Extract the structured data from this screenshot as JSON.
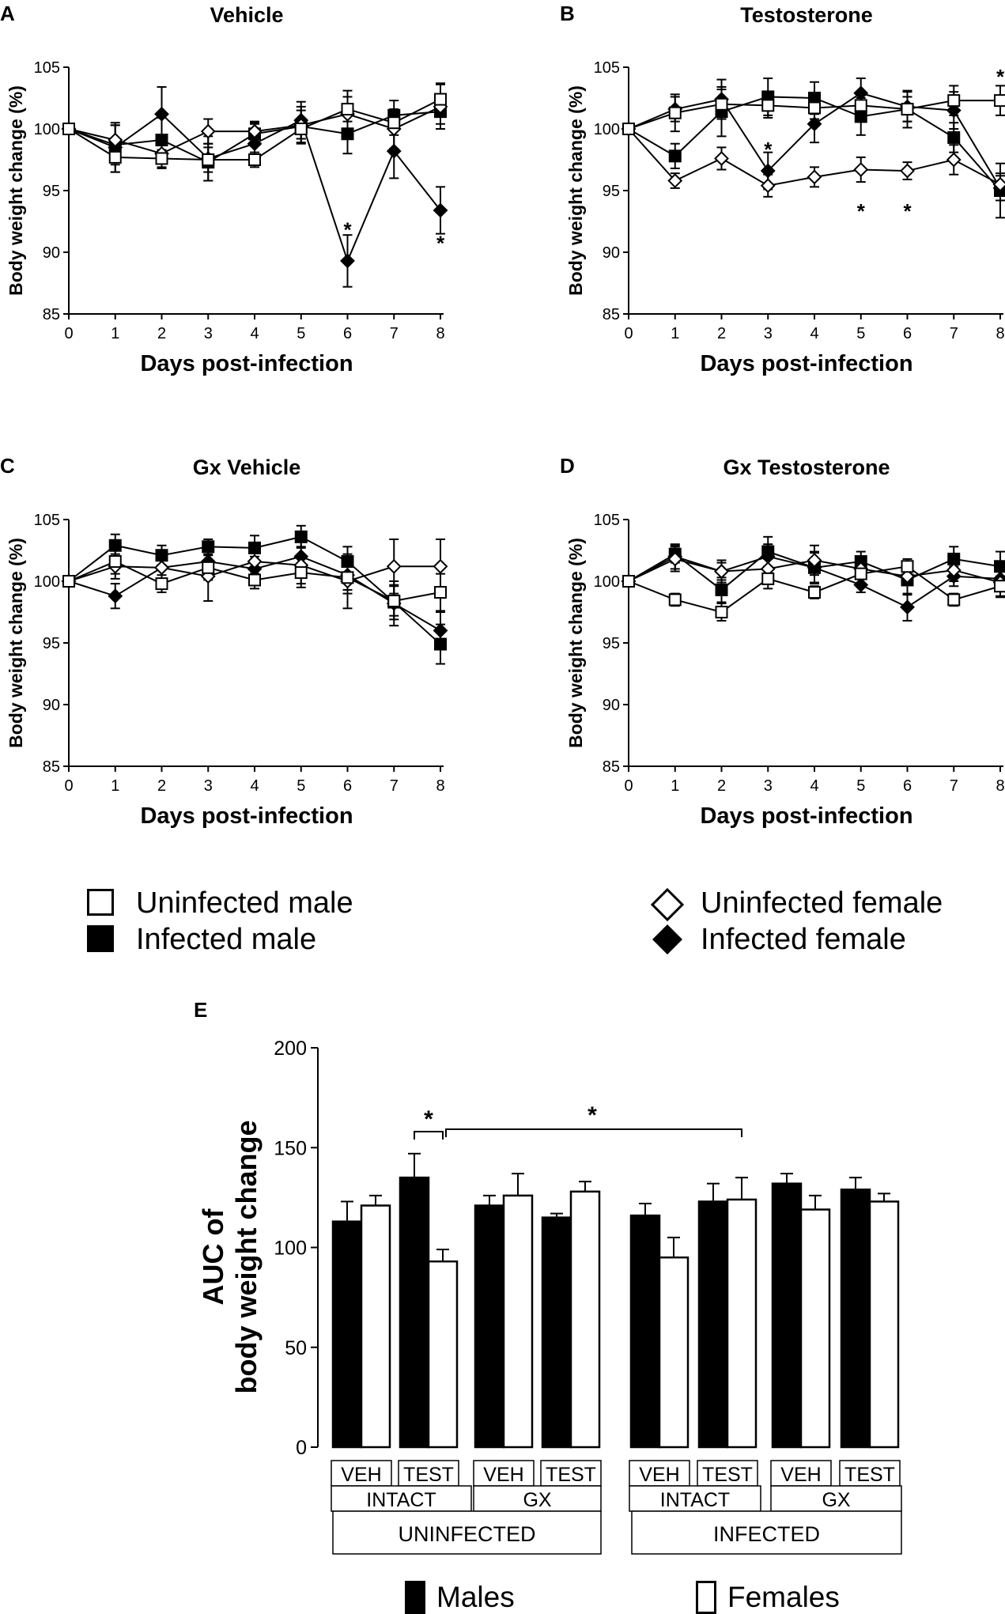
{
  "legend": {
    "uninfected_male": "Uninfected male",
    "infected_male": "Infected male",
    "uninfected_female": "Uninfected female",
    "infected_female": "Infected female",
    "males": "Males",
    "females": "Females"
  },
  "chart_data": [
    {
      "panel": "A",
      "type": "line",
      "title": "Vehicle",
      "xlabel": "Days post-infection",
      "ylabel": "Body weight change (%)",
      "x": [
        0,
        1,
        2,
        3,
        4,
        5,
        6,
        7,
        8
      ],
      "xticks": [
        "0",
        "1",
        "2",
        "3",
        "4",
        "5",
        "6",
        "7",
        "8"
      ],
      "yticks": [
        "85",
        "90",
        "95",
        "100",
        "105"
      ],
      "ylim": [
        85,
        105
      ],
      "series": [
        {
          "name": "Uninfected male",
          "marker": "open-square",
          "values": [
            100,
            97.7,
            97.6,
            97.5,
            97.5,
            100.0,
            101.6,
            100.5,
            102.4
          ],
          "err": [
            0,
            1.2,
            0.7,
            1.0,
            0.6,
            0.8,
            1.0,
            1.0,
            1.3
          ]
        },
        {
          "name": "Infected male",
          "marker": "filled-square",
          "values": [
            100,
            98.7,
            99.1,
            97.3,
            99.6,
            100.2,
            99.6,
            101.1,
            101.4
          ],
          "err": [
            0,
            1.6,
            1.8,
            1.5,
            0.9,
            1.3,
            1.6,
            1.2,
            1.0
          ]
        },
        {
          "name": "Uninfected female",
          "marker": "open-diamond",
          "values": [
            100,
            99.1,
            98.0,
            99.8,
            99.8,
            100.3,
            101.2,
            100.0,
            101.8
          ],
          "err": [
            0,
            1.2,
            1.2,
            1.0,
            0.8,
            1.5,
            1.9,
            1.6,
            1.8
          ]
        },
        {
          "name": "Infected female",
          "marker": "filled-diamond",
          "values": [
            100,
            98.5,
            101.2,
            97.6,
            98.8,
            100.7,
            89.3,
            98.2,
            93.4
          ],
          "err": [
            0,
            2.0,
            2.2,
            1.8,
            1.6,
            1.5,
            2.1,
            2.2,
            1.9
          ]
        }
      ],
      "annotations": [
        {
          "x": 6,
          "y": 91.9,
          "text": "*"
        },
        {
          "x": 8,
          "y": 90.8,
          "text": "*"
        }
      ]
    },
    {
      "panel": "B",
      "type": "line",
      "title": "Testosterone",
      "xlabel": "Days post-infection",
      "ylabel": "Body weight change (%)",
      "x": [
        0,
        1,
        2,
        3,
        4,
        5,
        6,
        7,
        8
      ],
      "xticks": [
        "0",
        "1",
        "2",
        "3",
        "4",
        "5",
        "6",
        "7",
        "8"
      ],
      "yticks": [
        "85",
        "90",
        "95",
        "100",
        "105"
      ],
      "ylim": [
        85,
        105
      ],
      "series": [
        {
          "name": "Uninfected male",
          "marker": "open-square",
          "values": [
            100,
            101.3,
            102.0,
            101.9,
            101.7,
            101.9,
            101.6,
            102.3,
            102.3
          ],
          "err": [
            0,
            1.5,
            1.2,
            1.0,
            0.9,
            1.0,
            1.0,
            1.2,
            1.2
          ]
        },
        {
          "name": "Infected male",
          "marker": "filled-square",
          "values": [
            100,
            97.8,
            101.4,
            102.6,
            102.5,
            101.0,
            101.6,
            99.3,
            95.0
          ],
          "err": [
            0,
            1.0,
            2.0,
            1.5,
            1.3,
            1.5,
            1.5,
            1.2,
            2.2
          ]
        },
        {
          "name": "Uninfected female",
          "marker": "open-diamond",
          "values": [
            100,
            95.8,
            97.6,
            95.4,
            96.1,
            96.7,
            96.6,
            97.5,
            95.5
          ],
          "err": [
            0,
            0.6,
            0.9,
            0.9,
            0.8,
            1.0,
            0.7,
            1.2,
            0.9
          ]
        },
        {
          "name": "Infected female",
          "marker": "filled-diamond",
          "values": [
            100,
            101.6,
            102.4,
            96.6,
            100.4,
            102.9,
            101.8,
            101.5,
            95.2
          ],
          "err": [
            0,
            1.0,
            1.6,
            1.5,
            1.5,
            1.2,
            1.2,
            1.5,
            1.0
          ]
        }
      ],
      "annotations": [
        {
          "x": 3,
          "y": 98.4,
          "text": "*"
        },
        {
          "x": 5,
          "y": 93.4,
          "text": "*"
        },
        {
          "x": 6,
          "y": 93.4,
          "text": "*"
        },
        {
          "x": 8,
          "y": 104.3,
          "text": "*"
        }
      ]
    },
    {
      "panel": "C",
      "type": "line",
      "title": "Gx Vehicle",
      "xlabel": "Days post-infection",
      "ylabel": "Body weight change (%)",
      "x": [
        0,
        1,
        2,
        3,
        4,
        5,
        6,
        7,
        8
      ],
      "xticks": [
        "0",
        "1",
        "2",
        "3",
        "4",
        "5",
        "6",
        "7",
        "8"
      ],
      "yticks": [
        "85",
        "90",
        "95",
        "100",
        "105"
      ],
      "ylim": [
        85,
        105
      ],
      "series": [
        {
          "name": "Uninfected male",
          "marker": "open-square",
          "values": [
            100,
            101.6,
            99.8,
            101.1,
            100.1,
            100.7,
            100.3,
            98.4,
            99.1
          ],
          "err": [
            0,
            1.0,
            0.7,
            1.0,
            0.7,
            1.2,
            1.0,
            1.2,
            1.5
          ]
        },
        {
          "name": "Infected male",
          "marker": "filled-square",
          "values": [
            100,
            102.9,
            102.1,
            102.8,
            102.7,
            103.6,
            101.6,
            98.3,
            94.9
          ],
          "err": [
            0,
            0.9,
            0.8,
            0.6,
            1.0,
            0.9,
            1.2,
            1.4,
            1.6
          ]
        },
        {
          "name": "Uninfected female",
          "marker": "open-diamond",
          "values": [
            100,
            101.2,
            101.1,
            100.4,
            101.6,
            101.3,
            100.0,
            101.2,
            101.2
          ],
          "err": [
            0,
            1.0,
            1.2,
            2.0,
            1.0,
            1.5,
            2.2,
            2.2,
            2.2
          ]
        },
        {
          "name": "Infected female",
          "marker": "filled-diamond",
          "values": [
            100,
            98.8,
            101.1,
            101.6,
            101.0,
            102.0,
            100.5,
            98.2,
            96.0
          ],
          "err": [
            0,
            1.0,
            1.2,
            1.2,
            1.0,
            1.2,
            1.5,
            1.8,
            1.5
          ]
        }
      ],
      "annotations": []
    },
    {
      "panel": "D",
      "type": "line",
      "title": "Gx Testosterone",
      "xlabel": "Days post-infection",
      "ylabel": "Body weight change (%)",
      "x": [
        0,
        1,
        2,
        3,
        4,
        5,
        6,
        7,
        8
      ],
      "xticks": [
        "0",
        "1",
        "2",
        "3",
        "4",
        "5",
        "6",
        "7",
        "8"
      ],
      "yticks": [
        "85",
        "90",
        "95",
        "100",
        "105"
      ],
      "ylim": [
        85,
        105
      ],
      "series": [
        {
          "name": "Uninfected male",
          "marker": "open-square",
          "values": [
            100,
            98.5,
            97.5,
            100.2,
            99.1,
            100.6,
            101.2,
            98.5,
            99.6
          ],
          "err": [
            0,
            0.5,
            0.7,
            0.8,
            0.5,
            0.8,
            0.6,
            0.5,
            0.8
          ]
        },
        {
          "name": "Infected male",
          "marker": "filled-square",
          "values": [
            100,
            102.2,
            99.3,
            102.4,
            101.1,
            101.6,
            100.1,
            101.8,
            101.2
          ],
          "err": [
            0,
            0.7,
            1.0,
            1.2,
            1.3,
            0.8,
            1.2,
            1.0,
            1.2
          ]
        },
        {
          "name": "Uninfected female",
          "marker": "open-diamond",
          "values": [
            100,
            101.8,
            100.8,
            101.0,
            101.7,
            101.0,
            100.4,
            100.9,
            99.9
          ],
          "err": [
            0,
            1.0,
            0.7,
            0.8,
            1.2,
            0.8,
            0.7,
            0.9,
            1.2
          ]
        },
        {
          "name": "Infected female",
          "marker": "filled-diamond",
          "values": [
            100,
            102.0,
            100.8,
            102.0,
            101.1,
            99.7,
            97.9,
            100.4,
            100.2
          ],
          "err": [
            0,
            1.0,
            0.9,
            1.0,
            1.2,
            0.6,
            1.1,
            0.8,
            1.0
          ]
        }
      ],
      "annotations": []
    },
    {
      "panel": "E",
      "type": "bar",
      "ylabel_line1": "AUC of",
      "ylabel_line2": "body weight change",
      "ylim": [
        0,
        200
      ],
      "yticks": [
        "0",
        "50",
        "100",
        "150",
        "200"
      ],
      "groups": [
        {
          "infection": "UNINFECTED",
          "surgery": "INTACT",
          "treatment": "VEH",
          "males": 113,
          "males_err": 10,
          "females": 121,
          "females_err": 5
        },
        {
          "infection": "UNINFECTED",
          "surgery": "INTACT",
          "treatment": "TEST",
          "males": 135,
          "males_err": 12,
          "females": 93,
          "females_err": 6
        },
        {
          "infection": "UNINFECTED",
          "surgery": "GX",
          "treatment": "VEH",
          "males": 121,
          "males_err": 5,
          "females": 126,
          "females_err": 11
        },
        {
          "infection": "UNINFECTED",
          "surgery": "GX",
          "treatment": "TEST",
          "males": 115,
          "males_err": 2,
          "females": 128,
          "females_err": 5
        },
        {
          "infection": "INFECTED",
          "surgery": "INTACT",
          "treatment": "VEH",
          "males": 116,
          "males_err": 6,
          "females": 95,
          "females_err": 10
        },
        {
          "infection": "INFECTED",
          "surgery": "INTACT",
          "treatment": "TEST",
          "males": 123,
          "males_err": 9,
          "females": 124,
          "females_err": 11
        },
        {
          "infection": "INFECTED",
          "surgery": "GX",
          "treatment": "VEH",
          "males": 132,
          "males_err": 5,
          "females": 119,
          "females_err": 7
        },
        {
          "infection": "INFECTED",
          "surgery": "GX",
          "treatment": "TEST",
          "males": 129,
          "males_err": 6,
          "females": 123,
          "females_err": 4
        }
      ],
      "surgery_labels": [
        "INTACT",
        "GX",
        "INTACT",
        "GX"
      ],
      "infection_labels": [
        "UNINFECTED",
        "INFECTED"
      ],
      "significance": [
        {
          "from": "UNINFECTED INTACT TEST males",
          "to": "UNINFECTED INTACT TEST females",
          "text": "*"
        },
        {
          "from": "UNINFECTED INTACT TEST females",
          "to": "INFECTED INTACT TEST females",
          "text": "*"
        }
      ]
    }
  ]
}
